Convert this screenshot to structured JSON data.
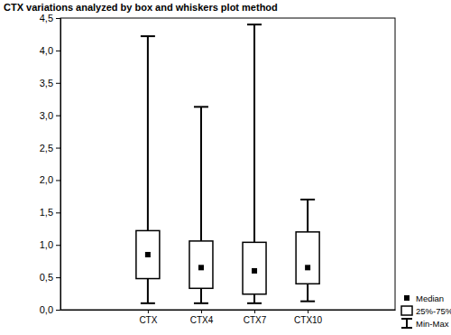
{
  "chart_data": {
    "type": "box",
    "title": "CTX variations analyzed by box and whiskers plot method",
    "categories": [
      "CTX",
      "CTX4",
      "CTX7",
      "CTX10"
    ],
    "series": [
      {
        "name": "Median",
        "marker": "square",
        "values": [
          0.85,
          0.65,
          0.6,
          0.65
        ]
      },
      {
        "name": "25%-75%",
        "low": [
          0.48,
          0.33,
          0.24,
          0.4
        ],
        "high": [
          1.22,
          1.06,
          1.04,
          1.2
        ]
      },
      {
        "name": "Min-Max",
        "low": [
          0.1,
          0.1,
          0.1,
          0.13
        ],
        "high": [
          4.22,
          3.13,
          4.4,
          1.7
        ]
      }
    ],
    "ylim": [
      0,
      4.5
    ],
    "yticks": [
      {
        "value": 0,
        "label": "0,0"
      },
      {
        "value": 0.5,
        "label": "0,5"
      },
      {
        "value": 1,
        "label": "1,0"
      },
      {
        "value": 1.5,
        "label": "1,5"
      },
      {
        "value": 2,
        "label": "2,0"
      },
      {
        "value": 2.5,
        "label": "2,5"
      },
      {
        "value": 3,
        "label": "3,0"
      },
      {
        "value": 3.5,
        "label": "3,5"
      },
      {
        "value": 4,
        "label": "4,0"
      },
      {
        "value": 4.5,
        "label": "4,5"
      }
    ],
    "grid": false,
    "legend": "lower right"
  }
}
